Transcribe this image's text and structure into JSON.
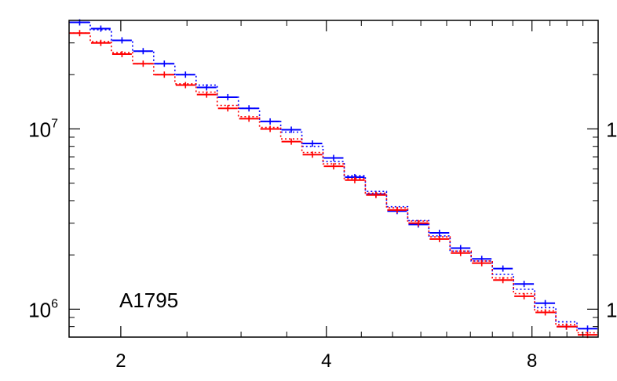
{
  "chart_data": {
    "type": "line",
    "title": "",
    "xlabel": "",
    "ylabel": "",
    "xscale": "log",
    "yscale": "log",
    "xlim": [
      1.68,
      10.0
    ],
    "ylim": [
      700000,
      40000000
    ],
    "xticks": [
      {
        "value": 2,
        "label": "2"
      },
      {
        "value": 4,
        "label": "4"
      },
      {
        "value": 8,
        "label": "8"
      }
    ],
    "yticks": [
      {
        "value": 1000000,
        "base": "10",
        "exp": "6"
      },
      {
        "value": 10000000,
        "base": "10",
        "exp": "7"
      }
    ],
    "annotation": "A1795",
    "bin_edges": [
      1.68,
      1.88,
      2.07,
      2.29,
      2.53,
      2.79,
      3.07,
      3.4,
      3.75,
      4.13,
      4.56,
      5.04,
      5.56,
      6.13,
      6.77,
      7.46,
      8.25,
      9.1,
      10.0
    ],
    "series": [
      {
        "color": "#0000ff",
        "style": "solid-points",
        "values": [
          39000000,
          36000000,
          31000000,
          27000000,
          23000000,
          20000000,
          17000000,
          15000000,
          13000000,
          11000000,
          9900000,
          8300000,
          6900000,
          5400000,
          4350000,
          3500000,
          2950000,
          2650000,
          2180000,
          1900000,
          1680000,
          1380000,
          1080000,
          800000,
          780000
        ]
      },
      {
        "color": "#0000ff",
        "style": "dotted-step",
        "values": [
          39000000,
          35500000,
          31000000,
          27000000,
          23000000,
          20000000,
          17500000,
          15000000,
          13000000,
          11000000,
          9600000,
          8000000,
          6600000,
          5500000,
          4500000,
          3700000,
          3100000,
          2550000,
          2100000,
          1850000,
          1560000,
          1290000,
          1020000,
          850000,
          780000
        ]
      },
      {
        "color": "#ff0000",
        "style": "solid-points",
        "values": [
          34000000,
          30000000,
          26000000,
          23000000,
          20000000,
          17500000,
          15500000,
          13000000,
          11400000,
          10000000,
          8500000,
          7200000,
          6200000,
          5200000,
          4300000,
          3550000,
          3000000,
          2450000,
          2050000,
          1800000,
          1450000,
          1180000,
          960000,
          800000,
          720000
        ]
      },
      {
        "color": "#ff0000",
        "style": "dotted-step",
        "values": [
          34000000,
          30500000,
          26500000,
          23000000,
          20000000,
          17800000,
          16000000,
          13500000,
          11700000,
          10200000,
          8800000,
          7400000,
          6400000,
          5300000,
          4400000,
          3650000,
          3080000,
          2520000,
          2100000,
          1850000,
          1490000,
          1220000,
          980000,
          820000,
          740000
        ]
      }
    ],
    "grid": false,
    "legend": "none"
  }
}
